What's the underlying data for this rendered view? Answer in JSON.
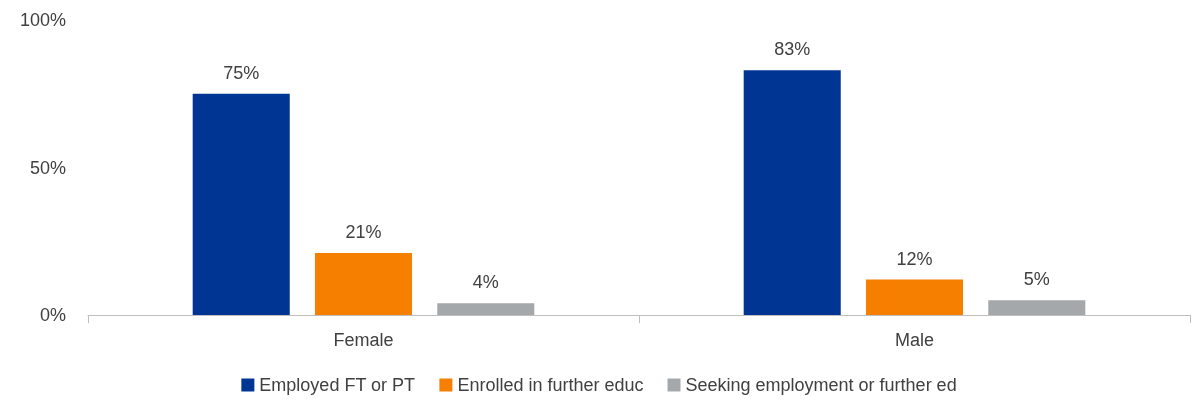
{
  "chart_data": {
    "type": "bar",
    "categories": [
      "Female",
      "Male"
    ],
    "series": [
      {
        "name": "Employed FT or PT",
        "color": "#003594",
        "values": [
          75,
          83
        ],
        "value_labels": [
          "75%",
          "83%"
        ]
      },
      {
        "name": "Enrolled in further educ",
        "color": "#f77f00",
        "values": [
          21,
          12
        ],
        "value_labels": [
          "21%",
          "12%"
        ]
      },
      {
        "name": "Seeking employment or further ed",
        "color": "#a5a8aa",
        "values": [
          4,
          5
        ],
        "value_labels": [
          "4%",
          "5%"
        ]
      }
    ],
    "ylim": [
      0,
      100
    ],
    "yticks": [
      {
        "value": 0,
        "label": "0%"
      },
      {
        "value": 50,
        "label": "50%"
      },
      {
        "value": 100,
        "label": "100%"
      }
    ],
    "grid": false,
    "legend": "bottom"
  }
}
